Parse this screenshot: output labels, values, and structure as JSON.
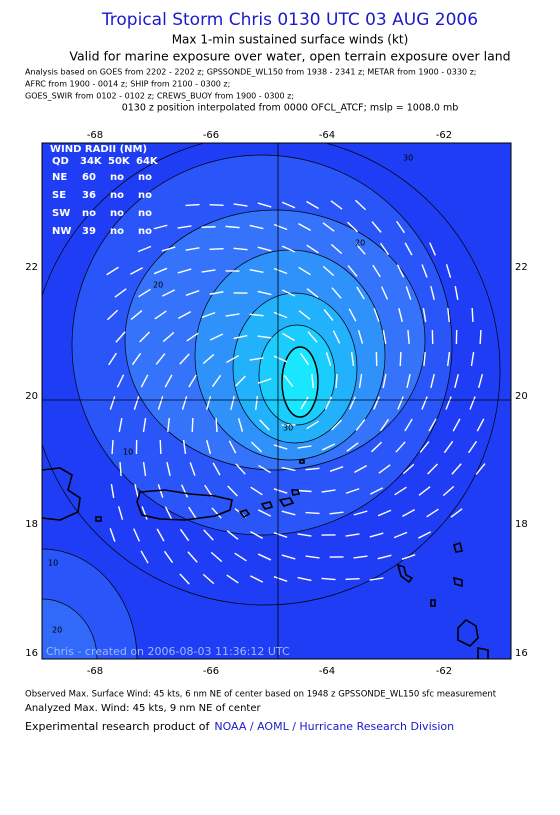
{
  "header": {
    "title": "Tropical Storm Chris 0130 UTC 03 AUG 2006",
    "subtitle_1": "Max 1-min sustained surface winds (kt)",
    "subtitle_2": "Valid for marine exposure over water, open terrain exposure over land",
    "analysis_lines": [
      "Analysis based on  GOES from 2202 - 2202 z;  GPSSONDE_WL150 from 1938 - 2341 z;  METAR from 1900 - 0330 z;",
      "AFRC from 1900 - 0014 z;  SHIP from 2100 - 0300 z;",
      "GOES_SWIR from 0102 - 0102 z;  CREWS_BUOY from 1900 - 0300 z;"
    ],
    "position_note": "0130 z position interpolated from 0000 OFCL_ATCF; mslp = 1008.0 mb"
  },
  "map": {
    "lon_ticks": [
      "-68",
      "-66",
      "-64",
      "-62"
    ],
    "lat_ticks": [
      "22",
      "20",
      "18",
      "16"
    ],
    "contour_labels": [
      "30",
      "20",
      "20",
      "10",
      "10",
      "20",
      "30"
    ],
    "credit": "Chris - created on 2006-08-03 11:36:12 UTC",
    "wind_radii": {
      "title": "WIND RADII (NM)",
      "header": [
        "QD",
        "34K",
        "50K",
        "64K"
      ],
      "rows": [
        [
          "NE",
          "60",
          "no",
          "no"
        ],
        [
          "SE",
          "36",
          "no",
          "no"
        ],
        [
          "SW",
          "no",
          "no",
          "no"
        ],
        [
          "NW",
          "39",
          "no",
          "no"
        ]
      ]
    }
  },
  "footer": {
    "observed": "Observed Max. Surface Wind: 45 kts, 6 nm NE of center based on 1948 z GPSSONDE_WL150 sfc measurement",
    "analyzed": "Analyzed Max. Wind: 45 kts, 9 nm NE of center",
    "credit_prefix": "Experimental research product of",
    "credit_link": "NOAA / AOML / Hurricane Research Division"
  }
}
